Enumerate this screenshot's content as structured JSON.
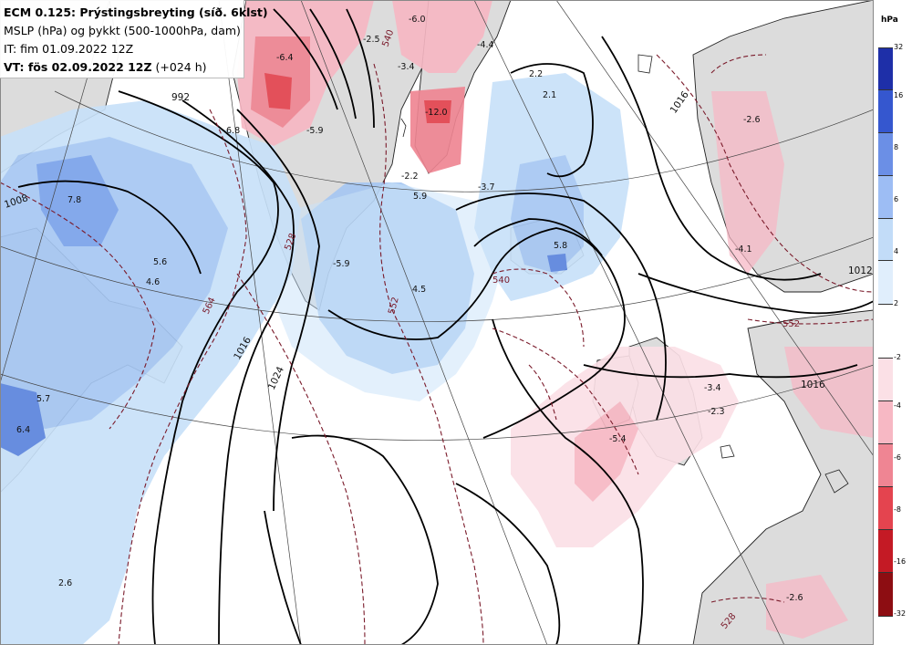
{
  "title": {
    "line1": "ECM 0.125: Prýstingsbreyting (síð. 6klst)",
    "line2": "MSLP (hPa) og þykkt (500-1000hPa, dam)",
    "line3": "IT: fim 01.09.2022 12Z",
    "line4_bold": "VT: fös 02.09.2022 12Z",
    "line4_rest": " (+024 h)"
  },
  "legend": {
    "unit": "hPa",
    "rising": {
      "labels": [
        "32",
        "16",
        "8",
        "6",
        "4",
        "2"
      ],
      "colors": [
        "#1e2fa8",
        "#3557cf",
        "#6b8fe6",
        "#9dbdf4",
        "#c2dcf8",
        "#e0eefc"
      ]
    },
    "falling": {
      "labels": [
        "-2",
        "-4",
        "-6",
        "-8",
        "-16",
        "-32"
      ],
      "colors": [
        "#fbe0e6",
        "#f7b8c4",
        "#ef8593",
        "#e4444f",
        "#c41a25",
        "#8d0d12"
      ]
    }
  },
  "map": {
    "isobar_labels": [
      "992",
      "1008",
      "1016",
      "1024",
      "1016",
      "1016",
      "1012"
    ],
    "thickness_labels": [
      "540",
      "552",
      "540",
      "564",
      "552",
      "528",
      "528"
    ],
    "values": [
      "-6.4",
      "-6.0",
      "-4.4",
      "-2.5",
      "-3.4",
      "-12.0",
      "-5.9",
      "6.8",
      "7.8",
      "5.6",
      "4.6",
      "-5.9",
      "5.9",
      "-3.7",
      "4.5",
      "-2.2",
      "2.2",
      "2.1",
      "-2.6",
      "-4.1",
      "5.8",
      "5.7",
      "6.4",
      "-3.4",
      "-2.3",
      "-5.4",
      "2.6",
      "-2.6"
    ]
  }
}
